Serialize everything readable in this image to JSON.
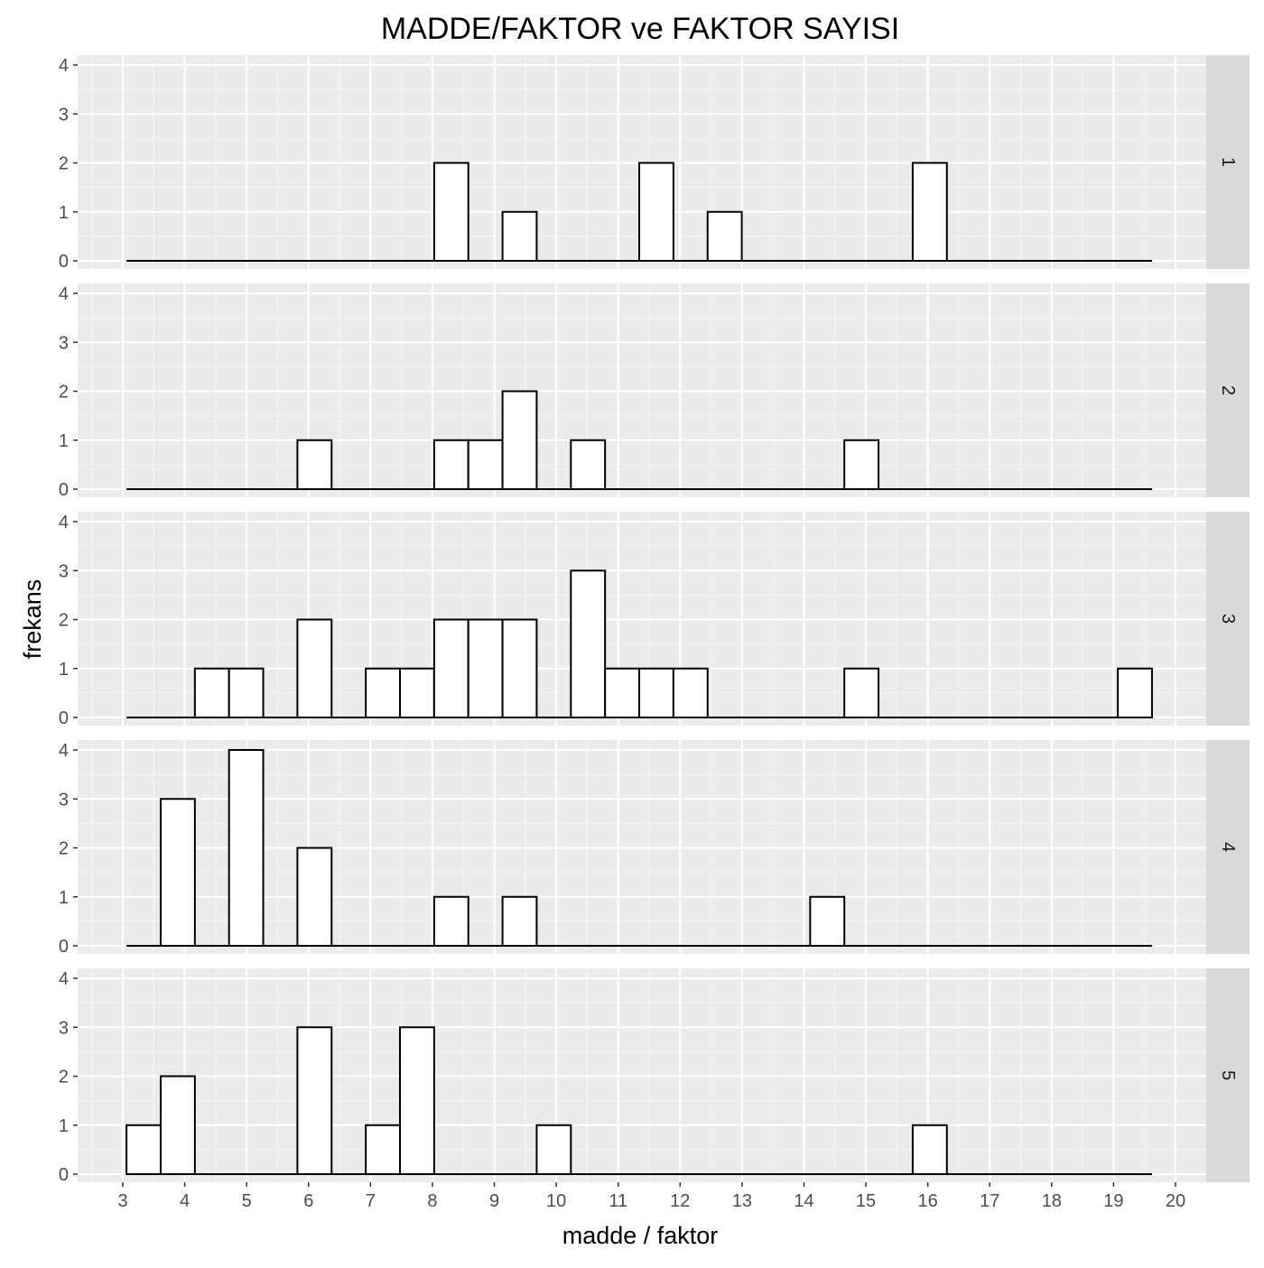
{
  "chart_data": {
    "type": "bar",
    "subtype": "faceted-histogram",
    "title": "MADDE/FAKTOR ve FAKTOR SAYISI",
    "xlabel": "madde / faktor",
    "ylabel": "frekans",
    "xlim": [
      2.0,
      20.5
    ],
    "ylim": [
      0,
      4
    ],
    "x_ticks": [
      3,
      4,
      5,
      6,
      7,
      8,
      9,
      10,
      11,
      12,
      13,
      14,
      15,
      16,
      17,
      18,
      19,
      20
    ],
    "y_ticks": [
      0,
      1,
      2,
      3,
      4
    ],
    "grid": true,
    "bin_width": 0.552,
    "bin_start": 3.06,
    "bin_count": 30,
    "facets": [
      {
        "label": "1",
        "counts": [
          0,
          0,
          0,
          0,
          0,
          0,
          0,
          0,
          0,
          2,
          0,
          1,
          0,
          0,
          0,
          2,
          0,
          1,
          0,
          0,
          0,
          0,
          0,
          2,
          0,
          0,
          0,
          0,
          0,
          0
        ]
      },
      {
        "label": "2",
        "counts": [
          0,
          0,
          0,
          0,
          0,
          1,
          0,
          0,
          0,
          1,
          1,
          2,
          0,
          1,
          0,
          0,
          0,
          0,
          0,
          0,
          0,
          1,
          0,
          0,
          0,
          0,
          0,
          0,
          0,
          0
        ]
      },
      {
        "label": "3",
        "counts": [
          0,
          0,
          1,
          1,
          0,
          2,
          0,
          1,
          1,
          2,
          2,
          2,
          0,
          3,
          1,
          1,
          1,
          0,
          0,
          0,
          0,
          1,
          0,
          0,
          0,
          0,
          0,
          0,
          0,
          1
        ]
      },
      {
        "label": "4",
        "counts": [
          0,
          3,
          0,
          4,
          0,
          2,
          0,
          0,
          0,
          1,
          0,
          1,
          0,
          0,
          0,
          0,
          0,
          0,
          0,
          0,
          1,
          0,
          0,
          0,
          0,
          0,
          0,
          0,
          0,
          0
        ]
      },
      {
        "label": "5",
        "counts": [
          1,
          2,
          0,
          0,
          0,
          3,
          0,
          1,
          3,
          0,
          0,
          0,
          1,
          0,
          0,
          0,
          0,
          0,
          0,
          0,
          0,
          0,
          0,
          1,
          0,
          0,
          0,
          0,
          0,
          0
        ]
      }
    ]
  }
}
